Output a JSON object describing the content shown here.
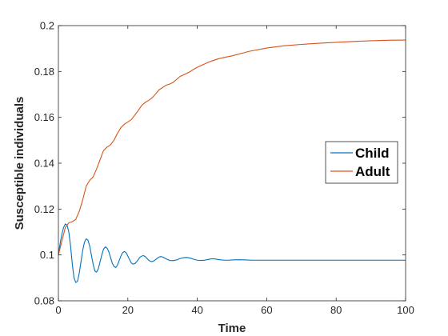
{
  "chart_data": {
    "type": "line",
    "xlabel": "Time",
    "ylabel": "Susceptible individuals",
    "xlim": [
      0,
      100
    ],
    "ylim": [
      0.08,
      0.2
    ],
    "x_ticks": [
      0,
      20,
      40,
      60,
      80,
      100
    ],
    "y_ticks": [
      0.08,
      0.1,
      0.12,
      0.14,
      0.16,
      0.18,
      0.2
    ],
    "y_tick_labels": [
      "0.08",
      "0.1",
      "0.12",
      "0.14",
      "0.16",
      "0.18",
      "0.2"
    ],
    "grid": false,
    "legend": "right",
    "series": [
      {
        "name": "Child",
        "color": "#0072BD",
        "x": [
          0,
          0.5,
          1,
          1.5,
          2,
          2.5,
          3,
          3.5,
          4,
          4.5,
          5,
          5.5,
          6,
          6.5,
          7,
          7.5,
          8,
          8.5,
          9,
          9.5,
          10,
          10.5,
          11,
          11.5,
          12,
          12.5,
          13,
          13.5,
          14,
          14.5,
          15,
          15.5,
          16,
          16.5,
          17,
          17.5,
          18,
          18.5,
          19,
          19.5,
          20,
          20.5,
          21,
          21.5,
          22,
          22.5,
          23,
          23.5,
          24,
          24.5,
          25,
          25.5,
          26,
          26.5,
          27,
          27.5,
          28,
          28.5,
          29,
          29.5,
          30,
          31,
          32,
          33,
          34,
          35,
          36,
          37,
          38,
          39,
          40,
          41,
          42,
          43,
          44,
          45,
          46,
          47,
          48,
          49,
          50,
          52,
          54,
          56,
          58,
          60,
          65,
          70,
          75,
          80,
          85,
          90,
          95,
          100
        ],
        "values": [
          0.1,
          0.105,
          0.109,
          0.112,
          0.1135,
          0.113,
          0.11,
          0.104,
          0.096,
          0.09,
          0.088,
          0.0885,
          0.092,
          0.097,
          0.102,
          0.1055,
          0.107,
          0.1065,
          0.104,
          0.1,
          0.096,
          0.093,
          0.0925,
          0.094,
          0.097,
          0.1,
          0.1025,
          0.1035,
          0.103,
          0.1015,
          0.099,
          0.0965,
          0.095,
          0.0945,
          0.0955,
          0.0975,
          0.0995,
          0.101,
          0.1015,
          0.101,
          0.0995,
          0.098,
          0.0965,
          0.096,
          0.0962,
          0.097,
          0.098,
          0.099,
          0.0995,
          0.0997,
          0.0993,
          0.0985,
          0.0977,
          0.0972,
          0.0971,
          0.0974,
          0.098,
          0.0986,
          0.0991,
          0.0993,
          0.0991,
          0.0983,
          0.0976,
          0.0975,
          0.0978,
          0.0984,
          0.0988,
          0.0989,
          0.0986,
          0.0981,
          0.0977,
          0.0976,
          0.0977,
          0.098,
          0.0983,
          0.0983,
          0.098,
          0.0978,
          0.0977,
          0.0977,
          0.0978,
          0.0979,
          0.0978,
          0.0977,
          0.0977,
          0.0977,
          0.0977,
          0.0977,
          0.0977,
          0.0977,
          0.0977,
          0.0977,
          0.0977,
          0.0977
        ]
      },
      {
        "name": "Adult",
        "color": "#D95319",
        "x": [
          0,
          1,
          2,
          3,
          4,
          5,
          6,
          7,
          8,
          9,
          10,
          11,
          12,
          13,
          14,
          15,
          16,
          17,
          18,
          19,
          20,
          21,
          22,
          23,
          24,
          25,
          26,
          27,
          28,
          29,
          30,
          31,
          32,
          33,
          34,
          35,
          36,
          37,
          38,
          39,
          40,
          42,
          44,
          46,
          48,
          50,
          55,
          60,
          65,
          70,
          75,
          80,
          85,
          90,
          95,
          100
        ],
        "values": [
          0.1,
          0.106,
          0.112,
          0.114,
          0.1145,
          0.1155,
          0.119,
          0.124,
          0.13,
          0.1325,
          0.134,
          0.1375,
          0.1415,
          0.1455,
          0.147,
          0.148,
          0.15,
          0.153,
          0.1555,
          0.157,
          0.158,
          0.159,
          0.161,
          0.163,
          0.1652,
          0.1665,
          0.1674,
          0.1685,
          0.1702,
          0.172,
          0.173,
          0.174,
          0.1745,
          0.1752,
          0.1765,
          0.1778,
          0.1785,
          0.1792,
          0.18,
          0.181,
          0.1818,
          0.1832,
          0.1845,
          0.1855,
          0.1862,
          0.1868,
          0.1888,
          0.1902,
          0.1912,
          0.1918,
          0.1923,
          0.1927,
          0.1931,
          0.1934,
          0.1936,
          0.1937
        ]
      }
    ]
  }
}
